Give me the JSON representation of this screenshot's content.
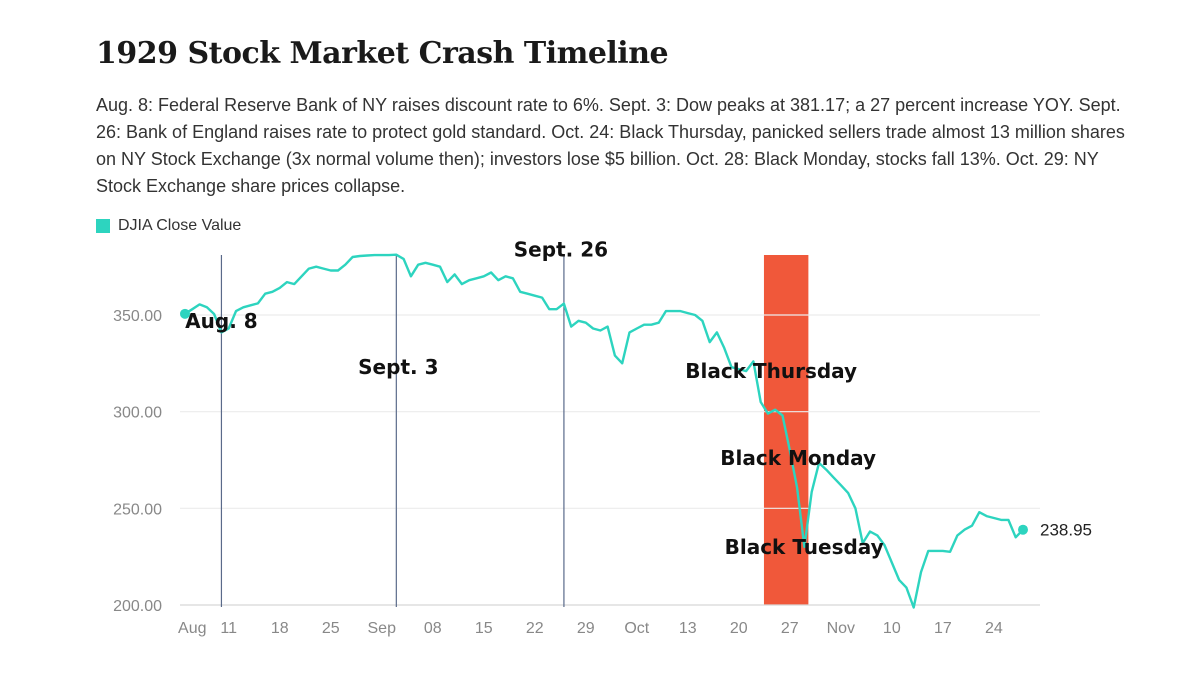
{
  "chart_data": {
    "type": "line",
    "title": "1929 Stock Market Crash Timeline",
    "subtitle": "Aug. 8: Federal Reserve Bank of NY raises discount rate to 6%. Sept. 3: Dow peaks at 381.17; a 27 percent increase YOY. Sept. 26: Bank of England raises rate to protect gold standard. Oct. 24: Black Thursday, panicked sellers trade almost 13 million shares on NY Stock Exchange (3x normal volume then); investors lose $5 billion. Oct. 28: Black Monday, stocks fall 13%. Oct. 29: NY Stock Exchange share prices collapse.",
    "series": [
      {
        "name": "DJIA Close Value",
        "color": "#2dd4bf",
        "points": [
          [
            "1929-08-05",
            350.6
          ],
          [
            "1929-08-06",
            353.0
          ],
          [
            "1929-08-07",
            355.5
          ],
          [
            "1929-08-08",
            354.0
          ],
          [
            "1929-08-09",
            350.5
          ],
          [
            "1929-08-10",
            341.0
          ],
          [
            "1929-08-11",
            343.0
          ],
          [
            "1929-08-12",
            352.0
          ],
          [
            "1929-08-13",
            354.0
          ],
          [
            "1929-08-14",
            355.0
          ],
          [
            "1929-08-15",
            356.0
          ],
          [
            "1929-08-16",
            361.0
          ],
          [
            "1929-08-17",
            362.0
          ],
          [
            "1929-08-18",
            364.0
          ],
          [
            "1929-08-19",
            367.0
          ],
          [
            "1929-08-20",
            366.0
          ],
          [
            "1929-08-21",
            370.0
          ],
          [
            "1929-08-22",
            374.0
          ],
          [
            "1929-08-23",
            375.0
          ],
          [
            "1929-08-24",
            374.0
          ],
          [
            "1929-08-25",
            373.0
          ],
          [
            "1929-08-26",
            373.0
          ],
          [
            "1929-08-27",
            376.0
          ],
          [
            "1929-08-28",
            380.0
          ],
          [
            "1929-08-29",
            380.5
          ],
          [
            "1929-08-30",
            380.8
          ],
          [
            "1929-08-31",
            381.0
          ],
          [
            "1929-09-01",
            381.0
          ],
          [
            "1929-09-02",
            381.0
          ],
          [
            "1929-09-03",
            381.17
          ],
          [
            "1929-09-04",
            379.0
          ],
          [
            "1929-09-05",
            370.0
          ],
          [
            "1929-09-06",
            376.0
          ],
          [
            "1929-09-07",
            377.0
          ],
          [
            "1929-09-08",
            376.0
          ],
          [
            "1929-09-09",
            375.0
          ],
          [
            "1929-09-10",
            367.0
          ],
          [
            "1929-09-11",
            371.0
          ],
          [
            "1929-09-12",
            366.0
          ],
          [
            "1929-09-13",
            368.0
          ],
          [
            "1929-09-14",
            369.0
          ],
          [
            "1929-09-15",
            370.0
          ],
          [
            "1929-09-16",
            372.0
          ],
          [
            "1929-09-17",
            368.0
          ],
          [
            "1929-09-18",
            370.0
          ],
          [
            "1929-09-19",
            369.0
          ],
          [
            "1929-09-20",
            362.0
          ],
          [
            "1929-09-21",
            361.0
          ],
          [
            "1929-09-22",
            360.0
          ],
          [
            "1929-09-23",
            359.0
          ],
          [
            "1929-09-24",
            353.0
          ],
          [
            "1929-09-25",
            353.0
          ],
          [
            "1929-09-26",
            355.9
          ],
          [
            "1929-09-27",
            344.0
          ],
          [
            "1929-09-28",
            347.0
          ],
          [
            "1929-09-29",
            346.0
          ],
          [
            "1929-09-30",
            343.0
          ],
          [
            "1929-10-01",
            342.0
          ],
          [
            "1929-10-02",
            344.0
          ],
          [
            "1929-10-03",
            329.0
          ],
          [
            "1929-10-04",
            325.0
          ],
          [
            "1929-10-05",
            341.0
          ],
          [
            "1929-10-06",
            343.0
          ],
          [
            "1929-10-07",
            345.0
          ],
          [
            "1929-10-08",
            345.0
          ],
          [
            "1929-10-09",
            346.0
          ],
          [
            "1929-10-10",
            352.0
          ],
          [
            "1929-10-11",
            352.0
          ],
          [
            "1929-10-12",
            352.0
          ],
          [
            "1929-10-13",
            351.0
          ],
          [
            "1929-10-14",
            350.0
          ],
          [
            "1929-10-15",
            347.0
          ],
          [
            "1929-10-16",
            336.0
          ],
          [
            "1929-10-17",
            341.0
          ],
          [
            "1929-10-18",
            333.0
          ],
          [
            "1929-10-19",
            323.0
          ],
          [
            "1929-10-20",
            322.0
          ],
          [
            "1929-10-21",
            321.0
          ],
          [
            "1929-10-22",
            326.0
          ],
          [
            "1929-10-23",
            305.0
          ],
          [
            "1929-10-24",
            299.0
          ],
          [
            "1929-10-25",
            301.0
          ],
          [
            "1929-10-26",
            298.0
          ],
          [
            "1929-10-27",
            280.0
          ],
          [
            "1929-10-28",
            260.6
          ],
          [
            "1929-10-29",
            230.1
          ],
          [
            "1929-10-30",
            258.5
          ],
          [
            "1929-10-31",
            273.5
          ],
          [
            "1929-11-01",
            270.0
          ],
          [
            "1929-11-02",
            266.0
          ],
          [
            "1929-11-03",
            262.0
          ],
          [
            "1929-11-04",
            258.0
          ],
          [
            "1929-11-05",
            250.0
          ],
          [
            "1929-11-06",
            232.0
          ],
          [
            "1929-11-07",
            238.0
          ],
          [
            "1929-11-08",
            236.0
          ],
          [
            "1929-11-09",
            231.0
          ],
          [
            "1929-11-10",
            222.0
          ],
          [
            "1929-11-11",
            213.0
          ],
          [
            "1929-11-12",
            209.0
          ],
          [
            "1929-11-13",
            198.7
          ],
          [
            "1929-11-14",
            217.0
          ],
          [
            "1929-11-15",
            228.0
          ],
          [
            "1929-11-16",
            228.0
          ],
          [
            "1929-11-17",
            228.0
          ],
          [
            "1929-11-18",
            227.5
          ],
          [
            "1929-11-19",
            236.0
          ],
          [
            "1929-11-20",
            239.0
          ],
          [
            "1929-11-21",
            241.0
          ],
          [
            "1929-11-22",
            248.0
          ],
          [
            "1929-11-23",
            246.0
          ],
          [
            "1929-11-24",
            245.0
          ],
          [
            "1929-11-25",
            244.0
          ],
          [
            "1929-11-26",
            244.0
          ],
          [
            "1929-11-27",
            235.0
          ],
          [
            "1929-11-28",
            238.95
          ]
        ]
      }
    ],
    "x_range": [
      "1929-08-03",
      "1929-11-30"
    ],
    "ylim": [
      200,
      380
    ],
    "y_ticks": [
      {
        "value": 200,
        "label": "200.00"
      },
      {
        "value": 250,
        "label": "250.00"
      },
      {
        "value": 300,
        "label": "300.00"
      },
      {
        "value": 350,
        "label": "350.00"
      }
    ],
    "x_ticks": [
      {
        "date": "1929-08-06",
        "label": "Aug"
      },
      {
        "date": "1929-08-11",
        "label": "11"
      },
      {
        "date": "1929-08-18",
        "label": "18"
      },
      {
        "date": "1929-08-25",
        "label": "25"
      },
      {
        "date": "1929-09-01",
        "label": "Sep"
      },
      {
        "date": "1929-09-08",
        "label": "08"
      },
      {
        "date": "1929-09-15",
        "label": "15"
      },
      {
        "date": "1929-09-22",
        "label": "22"
      },
      {
        "date": "1929-09-29",
        "label": "29"
      },
      {
        "date": "1929-10-06",
        "label": "Oct"
      },
      {
        "date": "1929-10-13",
        "label": "13"
      },
      {
        "date": "1929-10-20",
        "label": "20"
      },
      {
        "date": "1929-10-27",
        "label": "27"
      },
      {
        "date": "1929-11-03",
        "label": "Nov"
      },
      {
        "date": "1929-11-10",
        "label": "10"
      },
      {
        "date": "1929-11-17",
        "label": "17"
      },
      {
        "date": "1929-11-24",
        "label": "24"
      }
    ],
    "grid": "horizontal",
    "legend": "top-left",
    "event_lines": [
      {
        "date": "1929-08-10",
        "label": "Aug. 8",
        "label_value": 347
      },
      {
        "date": "1929-09-03",
        "label": "Sept. 3",
        "label_value": 323
      },
      {
        "date": "1929-09-26",
        "label": "Sept. 26",
        "label_value": 384
      }
    ],
    "highlight_band": {
      "start": "1929-10-24",
      "end": "1929-10-29",
      "color": "#f0583a"
    },
    "band_annotations": [
      {
        "date": "1929-10-24",
        "label": "Black Thursday",
        "label_value": 321
      },
      {
        "date": "1929-10-28",
        "label": "Black Monday",
        "label_value": 276
      },
      {
        "date": "1929-10-29",
        "label": "Black Tuesday",
        "label_value": 230
      }
    ],
    "end_value_label": "238.95"
  }
}
